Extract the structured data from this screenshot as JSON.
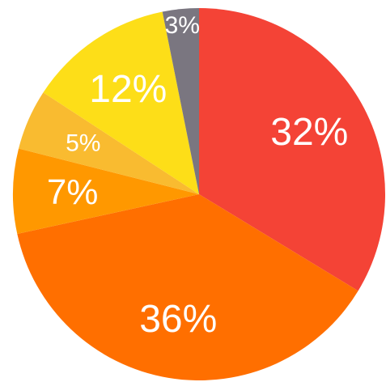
{
  "chart_data": {
    "type": "pie",
    "categories": [
      null,
      null,
      null,
      null,
      null,
      null
    ],
    "values": [
      32,
      36,
      7,
      5,
      12,
      3
    ],
    "value_labels": [
      "32%",
      "36%",
      "7%",
      "5%",
      "12%",
      "3%"
    ],
    "colors": [
      "#f44336",
      "#ff6f00",
      "#ff9800",
      "#f9bb30",
      "#fdde18",
      "#7a7680"
    ]
  }
}
